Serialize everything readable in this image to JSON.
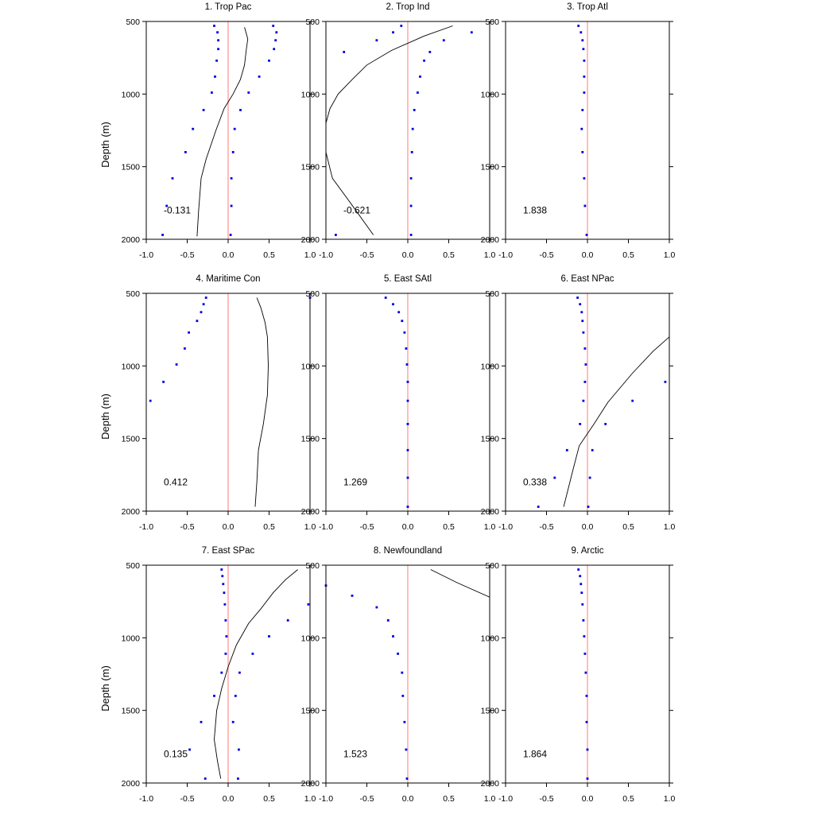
{
  "figure": {
    "ylabel": "Depth (m)"
  },
  "chart_data": [
    {
      "type": "scatter",
      "title": "1. Trop Pac",
      "annotation": "-0.131",
      "ylabel": "Depth (m)",
      "xlim": [
        -1.0,
        1.0
      ],
      "ylim": [
        2000,
        500
      ],
      "xticks": [
        "-1.0",
        "-0.5",
        "0.0",
        "0.5",
        "1.0"
      ],
      "yticks": [
        "500",
        "1000",
        "1500",
        "2000"
      ],
      "reference_x": 0,
      "points": [
        [
          -0.17,
          530
        ],
        [
          -0.13,
          575
        ],
        [
          -0.12,
          630
        ],
        [
          -0.12,
          690
        ],
        [
          -0.14,
          770
        ],
        [
          -0.16,
          880
        ],
        [
          -0.2,
          990
        ],
        [
          -0.3,
          1110
        ],
        [
          -0.43,
          1240
        ],
        [
          -0.52,
          1400
        ],
        [
          -0.68,
          1580
        ],
        [
          -0.75,
          1770
        ],
        [
          -0.8,
          1970
        ],
        [
          0.55,
          530
        ],
        [
          0.59,
          575
        ],
        [
          0.58,
          630
        ],
        [
          0.56,
          690
        ],
        [
          0.5,
          770
        ],
        [
          0.38,
          880
        ],
        [
          0.25,
          990
        ],
        [
          0.15,
          1110
        ],
        [
          0.08,
          1240
        ],
        [
          0.06,
          1400
        ],
        [
          0.04,
          1580
        ],
        [
          0.04,
          1770
        ],
        [
          0.03,
          1970
        ]
      ],
      "line": [
        [
          0.2,
          540
        ],
        [
          0.24,
          620
        ],
        [
          0.22,
          700
        ],
        [
          0.2,
          800
        ],
        [
          0.15,
          900
        ],
        [
          0.06,
          1000
        ],
        [
          -0.05,
          1100
        ],
        [
          -0.15,
          1250
        ],
        [
          -0.27,
          1450
        ],
        [
          -0.33,
          1580
        ],
        [
          -0.36,
          1800
        ],
        [
          -0.38,
          1980
        ]
      ]
    },
    {
      "type": "scatter",
      "title": "2. Trop Ind",
      "annotation": "-0.621",
      "xlim": [
        -1.0,
        1.0
      ],
      "ylim": [
        2000,
        500
      ],
      "xticks": [
        "-1.0",
        "-0.5",
        "0.0",
        "0.5",
        "1.0"
      ],
      "yticks": [
        "500",
        "1000",
        "1500",
        "2000"
      ],
      "reference_x": 0,
      "points": [
        [
          -0.08,
          530
        ],
        [
          -0.18,
          575
        ],
        [
          -0.38,
          630
        ],
        [
          -0.78,
          710
        ],
        [
          0.78,
          575
        ],
        [
          0.44,
          630
        ],
        [
          0.27,
          710
        ],
        [
          0.2,
          770
        ],
        [
          0.15,
          880
        ],
        [
          0.12,
          990
        ],
        [
          0.08,
          1110
        ],
        [
          0.06,
          1240
        ],
        [
          0.05,
          1400
        ],
        [
          0.04,
          1580
        ],
        [
          0.04,
          1770
        ],
        [
          0.04,
          1970
        ],
        [
          -0.88,
          1970
        ]
      ],
      "line": [
        [
          0.55,
          530
        ],
        [
          0.2,
          600
        ],
        [
          -0.2,
          700
        ],
        [
          -0.5,
          800
        ],
        [
          -0.68,
          900
        ],
        [
          -0.85,
          1000
        ],
        [
          -0.95,
          1100
        ],
        [
          -1.0,
          1200
        ],
        [
          -1.0,
          1400
        ],
        [
          -0.92,
          1580
        ],
        [
          -0.7,
          1750
        ],
        [
          -0.42,
          1970
        ]
      ]
    },
    {
      "type": "scatter",
      "title": "3. Trop Atl",
      "annotation": "1.838",
      "xlim": [
        -1.0,
        1.0
      ],
      "ylim": [
        2000,
        500
      ],
      "xticks": [
        "-1.0",
        "-0.5",
        "0.0",
        "0.5",
        "1.0"
      ],
      "yticks": [
        "500",
        "1000",
        "1500",
        "2000"
      ],
      "reference_x": 0,
      "points": [
        [
          -0.11,
          530
        ],
        [
          -0.08,
          575
        ],
        [
          -0.06,
          630
        ],
        [
          -0.05,
          690
        ],
        [
          -0.04,
          770
        ],
        [
          -0.04,
          880
        ],
        [
          -0.04,
          990
        ],
        [
          -0.06,
          1110
        ],
        [
          -0.07,
          1240
        ],
        [
          -0.06,
          1400
        ],
        [
          -0.04,
          1580
        ],
        [
          -0.03,
          1770
        ],
        [
          -0.01,
          1970
        ]
      ],
      "line": []
    },
    {
      "type": "scatter",
      "title": "4. Maritime Con",
      "annotation": "0.412",
      "ylabel": "Depth (m)",
      "xlim": [
        -1.0,
        1.0
      ],
      "ylim": [
        2000,
        500
      ],
      "xticks": [
        "-1.0",
        "-0.5",
        "0.0",
        "0.5",
        "1.0"
      ],
      "yticks": [
        "500",
        "1000",
        "1500",
        "2000"
      ],
      "reference_x": 0,
      "points": [
        [
          -0.27,
          530
        ],
        [
          -0.3,
          575
        ],
        [
          -0.33,
          630
        ],
        [
          -0.38,
          690
        ],
        [
          -0.48,
          770
        ],
        [
          -0.53,
          880
        ],
        [
          -0.63,
          990
        ],
        [
          -0.79,
          1110
        ],
        [
          -0.95,
          1240
        ],
        [
          1.0,
          530
        ]
      ],
      "line": [
        [
          0.35,
          530
        ],
        [
          0.4,
          600
        ],
        [
          0.45,
          700
        ],
        [
          0.48,
          800
        ],
        [
          0.49,
          1000
        ],
        [
          0.48,
          1200
        ],
        [
          0.43,
          1400
        ],
        [
          0.37,
          1580
        ],
        [
          0.35,
          1800
        ],
        [
          0.33,
          1970
        ]
      ]
    },
    {
      "type": "scatter",
      "title": "5. East SAtl",
      "annotation": "1.269",
      "xlim": [
        -1.0,
        1.0
      ],
      "ylim": [
        2000,
        500
      ],
      "xticks": [
        "-1.0",
        "-0.5",
        "0.0",
        "0.5",
        "1.0"
      ],
      "yticks": [
        "500",
        "1000",
        "1500",
        "2000"
      ],
      "reference_x": 0,
      "points": [
        [
          -0.27,
          530
        ],
        [
          -0.18,
          575
        ],
        [
          -0.11,
          630
        ],
        [
          -0.07,
          690
        ],
        [
          -0.04,
          770
        ],
        [
          -0.02,
          880
        ],
        [
          -0.01,
          990
        ],
        [
          0.0,
          1110
        ],
        [
          0.0,
          1240
        ],
        [
          0.0,
          1400
        ],
        [
          0.0,
          1580
        ],
        [
          0.0,
          1770
        ],
        [
          0.0,
          1970
        ]
      ],
      "line": []
    },
    {
      "type": "scatter",
      "title": "6. East NPac",
      "annotation": "0.338",
      "xlim": [
        -1.0,
        1.0
      ],
      "ylim": [
        2000,
        500
      ],
      "xticks": [
        "-1.0",
        "-0.5",
        "0.0",
        "0.5",
        "1.0"
      ],
      "yticks": [
        "500",
        "1000",
        "1500",
        "2000"
      ],
      "reference_x": 0,
      "points": [
        [
          -0.12,
          530
        ],
        [
          -0.09,
          575
        ],
        [
          -0.07,
          630
        ],
        [
          -0.06,
          690
        ],
        [
          -0.05,
          770
        ],
        [
          -0.03,
          880
        ],
        [
          -0.02,
          990
        ],
        [
          -0.03,
          1110
        ],
        [
          -0.05,
          1240
        ],
        [
          -0.09,
          1400
        ],
        [
          -0.25,
          1580
        ],
        [
          -0.4,
          1770
        ],
        [
          -0.6,
          1970
        ],
        [
          0.95,
          1110
        ],
        [
          0.55,
          1240
        ],
        [
          0.22,
          1400
        ],
        [
          0.06,
          1580
        ],
        [
          0.03,
          1770
        ],
        [
          0.01,
          1970
        ]
      ],
      "line": [
        [
          1.0,
          800
        ],
        [
          0.8,
          900
        ],
        [
          0.55,
          1050
        ],
        [
          0.25,
          1250
        ],
        [
          0.08,
          1400
        ],
        [
          -0.1,
          1550
        ],
        [
          -0.17,
          1700
        ],
        [
          -0.29,
          1970
        ]
      ]
    },
    {
      "type": "scatter",
      "title": "7. East SPac",
      "annotation": "0.135",
      "ylabel": "Depth (m)",
      "xlim": [
        -1.0,
        1.0
      ],
      "ylim": [
        2000,
        500
      ],
      "xticks": [
        "-1.0",
        "-0.5",
        "0.0",
        "0.5",
        "1.0"
      ],
      "yticks": [
        "500",
        "1000",
        "1500",
        "2000"
      ],
      "reference_x": 0,
      "points": [
        [
          -0.08,
          530
        ],
        [
          -0.07,
          575
        ],
        [
          -0.06,
          630
        ],
        [
          -0.05,
          690
        ],
        [
          -0.04,
          770
        ],
        [
          -0.03,
          880
        ],
        [
          -0.02,
          990
        ],
        [
          -0.03,
          1110
        ],
        [
          -0.08,
          1240
        ],
        [
          -0.17,
          1400
        ],
        [
          -0.33,
          1580
        ],
        [
          -0.47,
          1770
        ],
        [
          -0.28,
          1970
        ],
        [
          0.98,
          770
        ],
        [
          0.73,
          880
        ],
        [
          0.5,
          990
        ],
        [
          0.3,
          1110
        ],
        [
          0.14,
          1240
        ],
        [
          0.09,
          1400
        ],
        [
          0.06,
          1580
        ],
        [
          0.13,
          1770
        ],
        [
          0.12,
          1970
        ]
      ],
      "line": [
        [
          0.85,
          530
        ],
        [
          0.7,
          600
        ],
        [
          0.55,
          690
        ],
        [
          0.4,
          800
        ],
        [
          0.25,
          900
        ],
        [
          0.1,
          1050
        ],
        [
          0.0,
          1200
        ],
        [
          -0.08,
          1350
        ],
        [
          -0.14,
          1500
        ],
        [
          -0.17,
          1700
        ],
        [
          -0.13,
          1850
        ],
        [
          -0.09,
          1970
        ]
      ]
    },
    {
      "type": "scatter",
      "title": "8. Newfoundland",
      "annotation": "1.523",
      "xlim": [
        -1.0,
        1.0
      ],
      "ylim": [
        2000,
        500
      ],
      "xticks": [
        "-1.0",
        "-0.5",
        "0.0",
        "0.5",
        "1.0"
      ],
      "yticks": [
        "500",
        "1000",
        "1500",
        "2000"
      ],
      "reference_x": 0,
      "points": [
        [
          -1.0,
          640
        ],
        [
          -0.68,
          710
        ],
        [
          -0.38,
          790
        ],
        [
          -0.24,
          880
        ],
        [
          -0.18,
          990
        ],
        [
          -0.12,
          1110
        ],
        [
          -0.07,
          1240
        ],
        [
          -0.06,
          1400
        ],
        [
          -0.04,
          1580
        ],
        [
          -0.02,
          1770
        ],
        [
          -0.01,
          1970
        ]
      ],
      "line": [
        [
          0.28,
          530
        ],
        [
          0.6,
          620
        ],
        [
          1.0,
          720
        ]
      ]
    },
    {
      "type": "scatter",
      "title": "9. Arctic",
      "annotation": "1.864",
      "xlim": [
        -1.0,
        1.0
      ],
      "ylim": [
        2000,
        500
      ],
      "xticks": [
        "-1.0",
        "-0.5",
        "0.0",
        "0.5",
        "1.0"
      ],
      "yticks": [
        "500",
        "1000",
        "1500",
        "2000"
      ],
      "reference_x": 0,
      "points": [
        [
          -0.11,
          530
        ],
        [
          -0.09,
          575
        ],
        [
          -0.08,
          630
        ],
        [
          -0.07,
          690
        ],
        [
          -0.06,
          770
        ],
        [
          -0.05,
          880
        ],
        [
          -0.04,
          990
        ],
        [
          -0.03,
          1110
        ],
        [
          -0.02,
          1240
        ],
        [
          -0.01,
          1400
        ],
        [
          -0.01,
          1580
        ],
        [
          0.0,
          1770
        ],
        [
          0.0,
          1970
        ]
      ],
      "line": []
    }
  ],
  "colors": {
    "points": "#0000e0",
    "line": "#000000",
    "reference": "#ff9a9a",
    "axes": "#000000"
  }
}
